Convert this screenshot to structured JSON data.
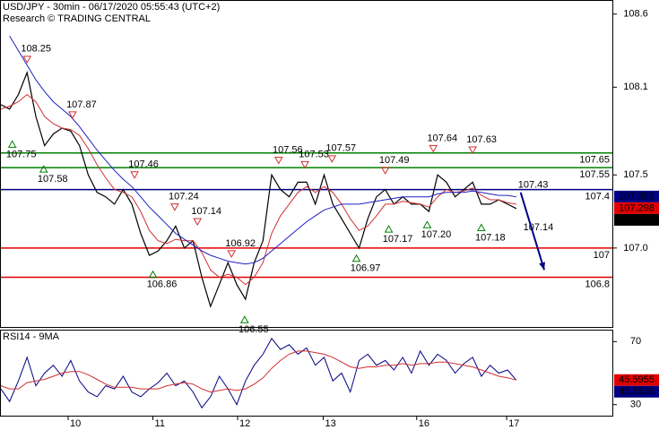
{
  "chart_data": [
    {
      "type": "line",
      "title": "USD/JPY - 30min - 06/17/2020 05:55:43 (UTC+2)",
      "subtitle": "Research © TRADING CENTRAL",
      "xlim": [
        0,
        70
      ],
      "ylim": [
        106.46,
        108.69
      ],
      "yticks": [
        108.6,
        108.1,
        107.5,
        {
          "value": 107,
          "label": "107.0"
        }
      ],
      "x": [
        0,
        1,
        2,
        3,
        4,
        5,
        6,
        7,
        8,
        9,
        10,
        11,
        12,
        13,
        14,
        15,
        16,
        17,
        18,
        19,
        20,
        21,
        22,
        23,
        24,
        25,
        26,
        27,
        28,
        29,
        30,
        31,
        32,
        33,
        34,
        35,
        36,
        37,
        38,
        39,
        40,
        41,
        42,
        43,
        44,
        45,
        46,
        47,
        48,
        49,
        50,
        51,
        52,
        53,
        54,
        55,
        56,
        57,
        58,
        59
      ],
      "series": [
        {
          "name": "USD/JPY",
          "color": "#000000",
          "values": [
            107.98,
            107.95,
            108.05,
            108.2,
            107.9,
            107.7,
            107.78,
            107.82,
            107.8,
            107.7,
            107.5,
            107.38,
            107.35,
            107.3,
            107.4,
            107.3,
            107.1,
            106.95,
            106.98,
            107.05,
            107.15,
            107.0,
            107.05,
            106.8,
            106.6,
            106.75,
            106.9,
            106.75,
            106.65,
            106.9,
            107.05,
            107.5,
            107.4,
            107.35,
            107.45,
            107.45,
            107.3,
            107.5,
            107.3,
            107.2,
            107.1,
            107.0,
            107.2,
            107.35,
            107.4,
            107.3,
            107.35,
            107.3,
            107.3,
            107.25,
            107.5,
            107.45,
            107.35,
            107.4,
            107.45,
            107.3,
            107.3,
            107.33,
            107.3,
            107.27
          ]
        },
        {
          "name": "MA fast",
          "color": "#d03030",
          "values": [
            107.95,
            107.97,
            108.0,
            108.05,
            108.0,
            107.9,
            107.85,
            107.82,
            107.81,
            107.77,
            107.68,
            107.57,
            107.48,
            107.4,
            107.38,
            107.35,
            107.25,
            107.12,
            107.05,
            107.03,
            107.06,
            107.05,
            107.05,
            106.97,
            106.85,
            106.8,
            106.82,
            106.8,
            106.75,
            106.8,
            106.9,
            107.1,
            107.22,
            107.3,
            107.38,
            107.42,
            107.38,
            107.42,
            107.38,
            107.3,
            107.2,
            107.12,
            107.15,
            107.22,
            107.3,
            107.3,
            107.32,
            107.31,
            107.3,
            107.28,
            107.35,
            107.4,
            107.38,
            107.39,
            107.41,
            107.36,
            107.33,
            107.33,
            107.31,
            107.3
          ]
        },
        {
          "name": "MA slow",
          "color": "#2020c0",
          "values": [
            null,
            108.45,
            108.35,
            108.25,
            108.15,
            108.07,
            108.0,
            107.95,
            107.9,
            107.83,
            107.75,
            107.67,
            107.6,
            107.53,
            107.47,
            107.42,
            107.35,
            107.28,
            107.22,
            107.16,
            107.1,
            107.06,
            107.02,
            106.98,
            106.95,
            106.93,
            106.91,
            106.9,
            106.89,
            106.9,
            106.93,
            106.98,
            107.03,
            107.08,
            107.13,
            107.18,
            107.22,
            107.26,
            107.28,
            107.3,
            107.3,
            107.3,
            107.31,
            107.32,
            107.33,
            107.34,
            107.35,
            107.35,
            107.35,
            107.35,
            107.37,
            107.38,
            107.38,
            107.38,
            107.39,
            107.38,
            107.37,
            107.36,
            107.36,
            107.35
          ]
        }
      ],
      "levels": [
        {
          "value": 107.65,
          "color": "#008000"
        },
        {
          "value": 107.55,
          "color": "#008000"
        },
        {
          "value": 107.4,
          "color": "#000080"
        },
        {
          "value": 107,
          "color": "#e00000"
        },
        {
          "value": 106.8,
          "color": "#e00000"
        }
      ],
      "price_labels": [
        {
          "value": 107.352,
          "color": "#000080"
        },
        {
          "value": 107.298,
          "color": "#e00000"
        },
        {
          "value": 107.253,
          "color": "#000000"
        }
      ],
      "annotations": [
        {
          "x": 1.3,
          "value": 107.75,
          "label": "107.75",
          "marker": "up"
        },
        {
          "x": 3,
          "value": 108.25,
          "label": "108.25",
          "marker": "down"
        },
        {
          "x": 4.9,
          "value": 107.58,
          "label": "107.58",
          "marker": "up"
        },
        {
          "x": 8.2,
          "value": 107.87,
          "label": "107.87",
          "marker": "down"
        },
        {
          "x": 15.3,
          "value": 107.46,
          "label": "107.46",
          "marker": "down"
        },
        {
          "x": 17.4,
          "value": 106.86,
          "label": "106.86",
          "marker": "up"
        },
        {
          "x": 19.9,
          "value": 107.24,
          "label": "107.24",
          "marker": "down"
        },
        {
          "x": 22.5,
          "value": 107.14,
          "label": "107.14",
          "marker": "down"
        },
        {
          "x": 26.4,
          "value": 106.92,
          "label": "106.92",
          "marker": "down"
        },
        {
          "x": 27.9,
          "value": 106.55,
          "label": "106.55",
          "marker": "up"
        },
        {
          "x": 31.8,
          "value": 107.56,
          "label": "107.56",
          "marker": "down"
        },
        {
          "x": 34.8,
          "value": 107.53,
          "label": "107.53",
          "marker": "down"
        },
        {
          "x": 37.9,
          "value": 107.57,
          "label": "107.57",
          "marker": "down"
        },
        {
          "x": 40.7,
          "value": 106.97,
          "label": "106.97",
          "marker": "up"
        },
        {
          "x": 44,
          "value": 107.49,
          "label": "107.49",
          "marker": "down"
        },
        {
          "x": 44.4,
          "value": 107.17,
          "label": "107.17",
          "marker": "up"
        },
        {
          "x": 48.8,
          "value": 107.2,
          "label": "107.20",
          "marker": "up"
        },
        {
          "x": 49.5,
          "value": 107.64,
          "label": "107.64",
          "marker": "down"
        },
        {
          "x": 54,
          "value": 107.63,
          "label": "107.63",
          "marker": "down"
        },
        {
          "x": 55,
          "value": 107.18,
          "label": "107.18",
          "marker": "up"
        },
        {
          "x": 59.2,
          "value": 107.43,
          "label": "107.43",
          "marker": "none"
        },
        {
          "x": 59.8,
          "value": 107.14,
          "label": "107.14",
          "marker": "none"
        }
      ],
      "arrow": {
        "x": [
          59.5,
          62.2
        ],
        "values": [
          107.38,
          106.85
        ],
        "color": "#000080"
      }
    },
    {
      "type": "line",
      "title": "RSI14 - 9MA",
      "xlim": [
        0,
        70
      ],
      "ylim": [
        23,
        77
      ],
      "yticks": [
        70,
        30
      ],
      "xticks": [
        {
          "value": 7.7,
          "label": "10"
        },
        {
          "value": 17.4,
          "label": "11"
        },
        {
          "value": 27.1,
          "label": "12"
        },
        {
          "value": 36.9,
          "label": "13"
        },
        {
          "value": 47.6,
          "label": "16"
        },
        {
          "value": 57.9,
          "label": "17"
        }
      ],
      "x": [
        0,
        1,
        2,
        3,
        4,
        5,
        6,
        7,
        8,
        9,
        10,
        11,
        12,
        13,
        14,
        15,
        16,
        17,
        18,
        19,
        20,
        21,
        22,
        23,
        24,
        25,
        26,
        27,
        28,
        29,
        30,
        31,
        32,
        33,
        34,
        35,
        36,
        37,
        38,
        39,
        40,
        41,
        42,
        43,
        44,
        45,
        46,
        47,
        48,
        49,
        50,
        51,
        52,
        53,
        54,
        55,
        56,
        57,
        58,
        59
      ],
      "series": [
        {
          "name": "RSI14",
          "color": "#000080",
          "values": [
            40,
            32,
            45,
            60,
            42,
            50,
            55,
            48,
            58,
            45,
            38,
            35,
            42,
            40,
            48,
            38,
            35,
            40,
            44,
            50,
            42,
            45,
            38,
            28,
            35,
            48,
            40,
            30,
            45,
            55,
            62,
            72,
            65,
            68,
            62,
            66,
            55,
            60,
            45,
            50,
            38,
            58,
            62,
            55,
            58,
            52,
            60,
            50,
            64,
            55,
            62,
            58,
            50,
            56,
            60,
            48,
            55,
            50,
            52,
            45.5536
          ]
        },
        {
          "name": "9MA",
          "color": "#d03030",
          "values": [
            42,
            40,
            40,
            44,
            45,
            46,
            48,
            50,
            51,
            51,
            49,
            46,
            43,
            41,
            41,
            41,
            40,
            40,
            40,
            42,
            43,
            44,
            43,
            40,
            38,
            39,
            40,
            39,
            40,
            43,
            47,
            53,
            58,
            62,
            64,
            64,
            63,
            62,
            60,
            57,
            54,
            53,
            54,
            54,
            55,
            55,
            56,
            55,
            56,
            56,
            57,
            57,
            56,
            55,
            54,
            52,
            50,
            48,
            47,
            45.5955
          ]
        }
      ],
      "price_labels": [
        {
          "value": 45.5955,
          "color": "#e00000"
        },
        {
          "value": 45.5536,
          "color": "#000080"
        }
      ]
    }
  ]
}
